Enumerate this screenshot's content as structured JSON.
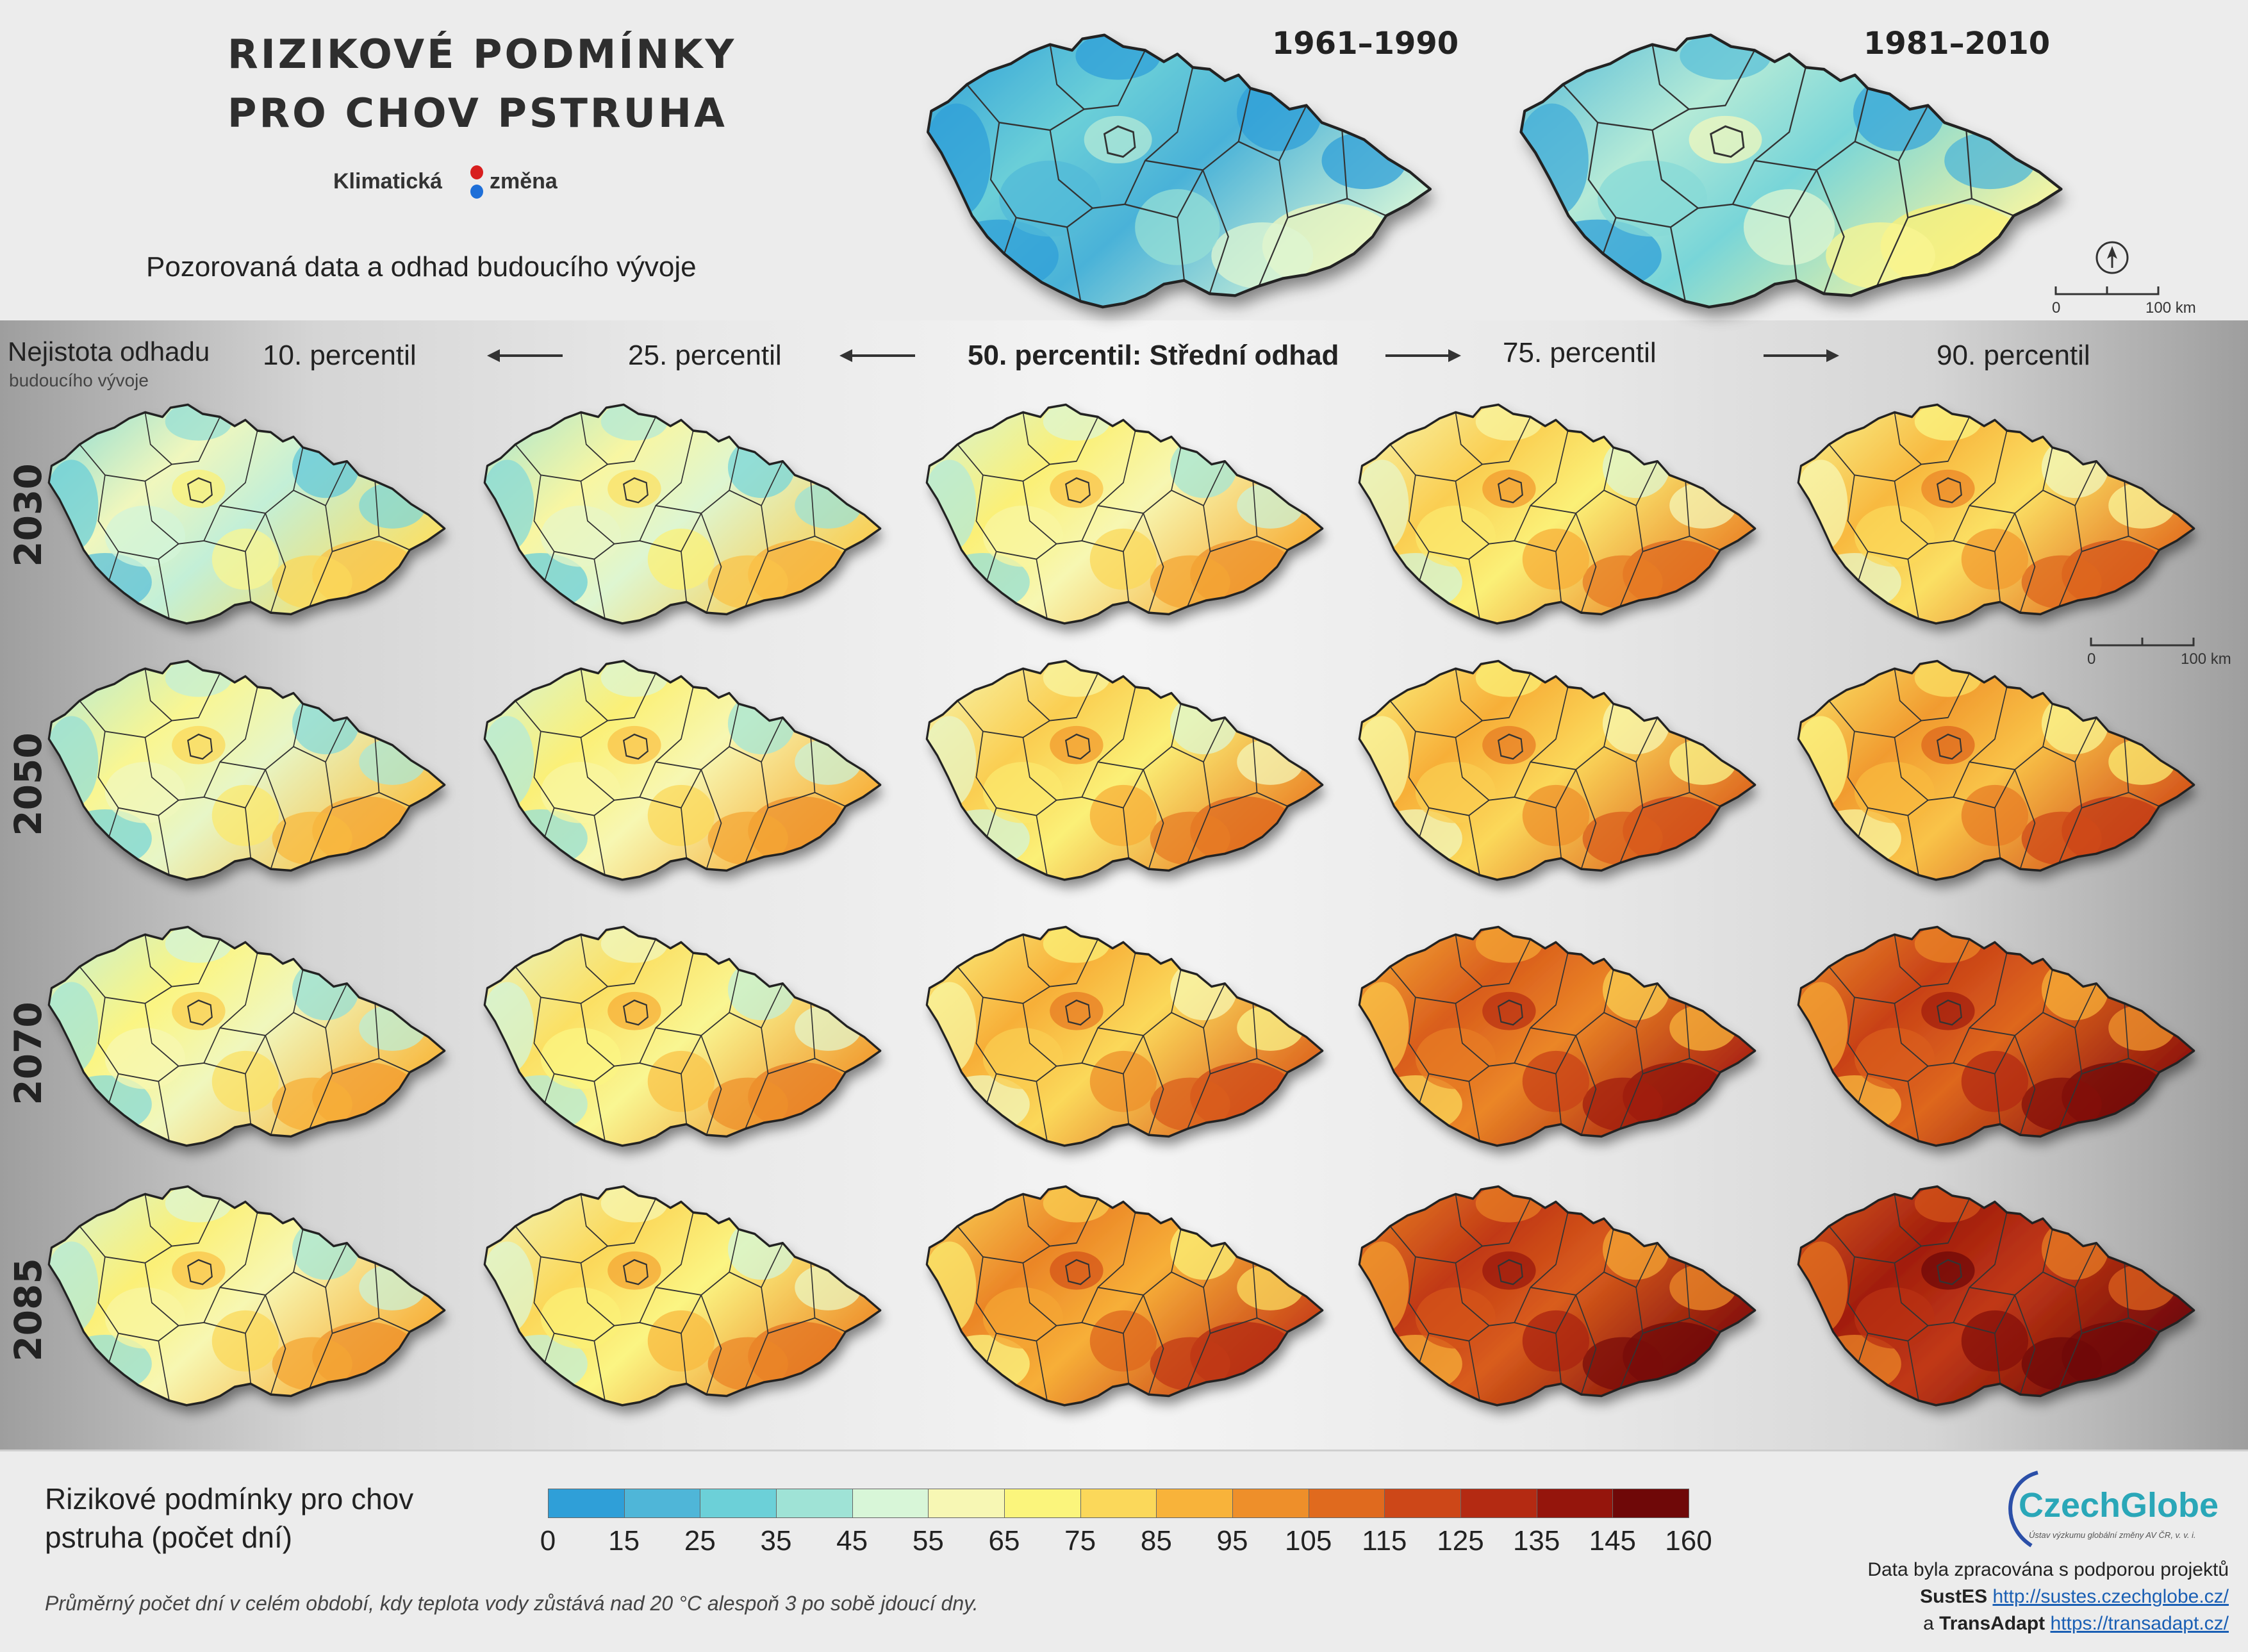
{
  "header": {
    "title_line1": "RIZIKOVÉ PODMÍNKY",
    "title_line2": "PRO CHOV PSTRUHA",
    "logo_left": "Klimatická",
    "logo_right": "změna",
    "subtitle": "Pozorovaná data a odhad budoucího vývoje",
    "period_1": "1961–1990",
    "period_2": "1981–2010",
    "scale_zero": "0",
    "scale_end": "100 km"
  },
  "grid": {
    "uncertainty_title": "Nejistota odhadu",
    "uncertainty_subtitle": "budoucího vývoje",
    "columns": [
      "10. percentil",
      "25. percentil",
      "50. percentil: Střední odhad",
      "75. percentil",
      "90. percentil"
    ],
    "rows": [
      "2030",
      "2050",
      "2070",
      "2085"
    ],
    "scale_zero": "0",
    "scale_end": "100 km"
  },
  "maps": {
    "observed": [
      {
        "period": "1961–1990",
        "level": 0.12
      },
      {
        "period": "1981–2010",
        "level": 0.22
      }
    ],
    "projections": [
      [
        0.32,
        0.36,
        0.42,
        0.5,
        0.54
      ],
      [
        0.38,
        0.42,
        0.5,
        0.56,
        0.6
      ],
      [
        0.4,
        0.46,
        0.56,
        0.72,
        0.78
      ],
      [
        0.42,
        0.48,
        0.64,
        0.8,
        0.88
      ]
    ]
  },
  "legend": {
    "title_line1": "Rizikové podmínky pro chov",
    "title_line2": "pstruha (počet dní)",
    "ticks": [
      "0",
      "15",
      "25",
      "35",
      "45",
      "55",
      "65",
      "75",
      "85",
      "95",
      "105",
      "115",
      "125",
      "135",
      "145",
      "160"
    ],
    "colors": [
      "#2f9fd8",
      "#4fb6d8",
      "#6cd0d8",
      "#9fe3d6",
      "#d8f6d8",
      "#f7f7b4",
      "#fbf57c",
      "#fbd85a",
      "#f8b33a",
      "#ee8f2a",
      "#e06a1e",
      "#cd4718",
      "#b42a12",
      "#95150c",
      "#6f0808"
    ],
    "note": "Průměrný počet dní v celém období, kdy teplota vody zůstává nad 20 °C alespoň 3 po sobě jdoucí dny."
  },
  "credits": {
    "brand": "CzechGlobe",
    "brand_sub": "Ústav výzkumu globální změny AV ČR, v. v. i.",
    "line1": "Data byla zpracována s podporou projektů",
    "project1": "SustES",
    "url1": "http://sustes.czechglobe.cz/",
    "conj": "a",
    "project2": "TransAdapt",
    "url2": "https://transadapt.cz/"
  }
}
